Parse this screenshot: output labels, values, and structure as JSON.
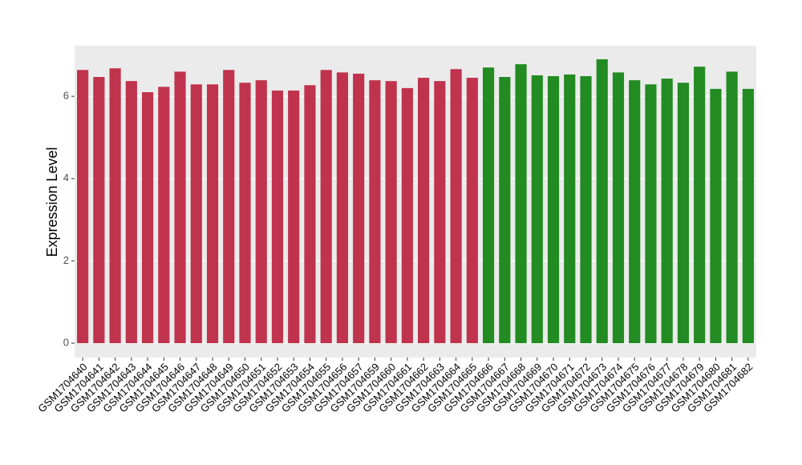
{
  "chart_data": {
    "type": "bar",
    "y_label": "Expression Level",
    "categories": [
      "GSM1704640",
      "GSM1704641",
      "GSM1704642",
      "GSM1704643",
      "GSM1704644",
      "GSM1704645",
      "GSM1704646",
      "GSM1704647",
      "GSM1704648",
      "GSM1704649",
      "GSM1704650",
      "GSM1704651",
      "GSM1704652",
      "GSM1704653",
      "GSM1704654",
      "GSM1704655",
      "GSM1704656",
      "GSM1704657",
      "GSM1704659",
      "GSM1704660",
      "GSM1704661",
      "GSM1704662",
      "GSM1704663",
      "GSM1704664",
      "GSM1704665",
      "GSM1704666",
      "GSM1704667",
      "GSM1704668",
      "GSM1704669",
      "GSM1704670",
      "GSM1704671",
      "GSM1704672",
      "GSM1704673",
      "GSM1704674",
      "GSM1704675",
      "GSM1704676",
      "GSM1704677",
      "GSM1704678",
      "GSM1704679",
      "GSM1704680",
      "GSM1704681",
      "GSM1704682"
    ],
    "values": [
      6.64,
      6.47,
      6.68,
      6.37,
      6.1,
      6.23,
      6.6,
      6.29,
      6.29,
      6.64,
      6.33,
      6.39,
      6.14,
      6.14,
      6.27,
      6.64,
      6.58,
      6.55,
      6.39,
      6.37,
      6.2,
      6.45,
      6.37,
      6.66,
      6.45,
      6.7,
      6.47,
      6.78,
      6.51,
      6.49,
      6.53,
      6.49,
      6.9,
      6.58,
      6.39,
      6.29,
      6.43,
      6.33,
      6.72,
      6.18,
      6.6,
      6.18
    ],
    "colors": [
      "#c0334d",
      "#c0334d",
      "#c0334d",
      "#c0334d",
      "#c0334d",
      "#c0334d",
      "#c0334d",
      "#c0334d",
      "#c0334d",
      "#c0334d",
      "#c0334d",
      "#c0334d",
      "#c0334d",
      "#c0334d",
      "#c0334d",
      "#c0334d",
      "#c0334d",
      "#c0334d",
      "#c0334d",
      "#c0334d",
      "#c0334d",
      "#c0334d",
      "#c0334d",
      "#c0334d",
      "#c0334d",
      "#228b22",
      "#228b22",
      "#228b22",
      "#228b22",
      "#228b22",
      "#228b22",
      "#228b22",
      "#228b22",
      "#228b22",
      "#228b22",
      "#228b22",
      "#228b22",
      "#228b22",
      "#228b22",
      "#228b22",
      "#228b22",
      "#228b22"
    ],
    "ylim": [
      -0.35,
      7.23
    ],
    "yticks": [
      0,
      2,
      4,
      6
    ],
    "grid": true
  }
}
